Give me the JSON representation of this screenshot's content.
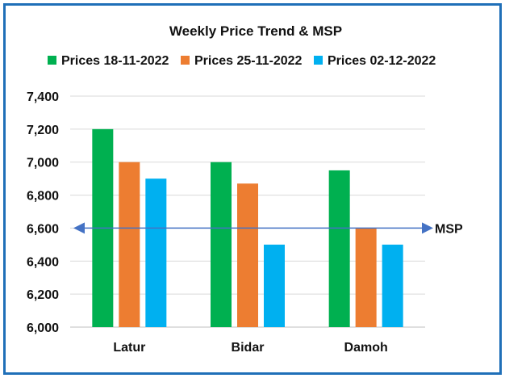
{
  "chart_data": {
    "type": "bar",
    "title": "Weekly Price Trend & MSP",
    "categories": [
      "Latur",
      "Bidar",
      "Damoh"
    ],
    "series": [
      {
        "name": "Prices 18-11-2022",
        "color": "#00b050",
        "values": [
          7200,
          7000,
          6950
        ]
      },
      {
        "name": "Prices 25-11-2022",
        "color": "#ed7d31",
        "values": [
          7000,
          6870,
          6600
        ]
      },
      {
        "name": "Prices 02-12-2022",
        "color": "#00b0f0",
        "values": [
          6900,
          6500,
          6500
        ]
      }
    ],
    "ylim": [
      6000,
      7400
    ],
    "yticks": [
      6000,
      6200,
      6400,
      6600,
      6800,
      7000,
      7200,
      7400
    ],
    "ytick_labels": [
      "6,000",
      "6,200",
      "6,400",
      "6,600",
      "6,800",
      "7,000",
      "7,200",
      "7,400"
    ],
    "grid": true,
    "legend_position": "top",
    "reference_line": {
      "label": "MSP",
      "value": 6600,
      "color": "#4472c4"
    }
  }
}
